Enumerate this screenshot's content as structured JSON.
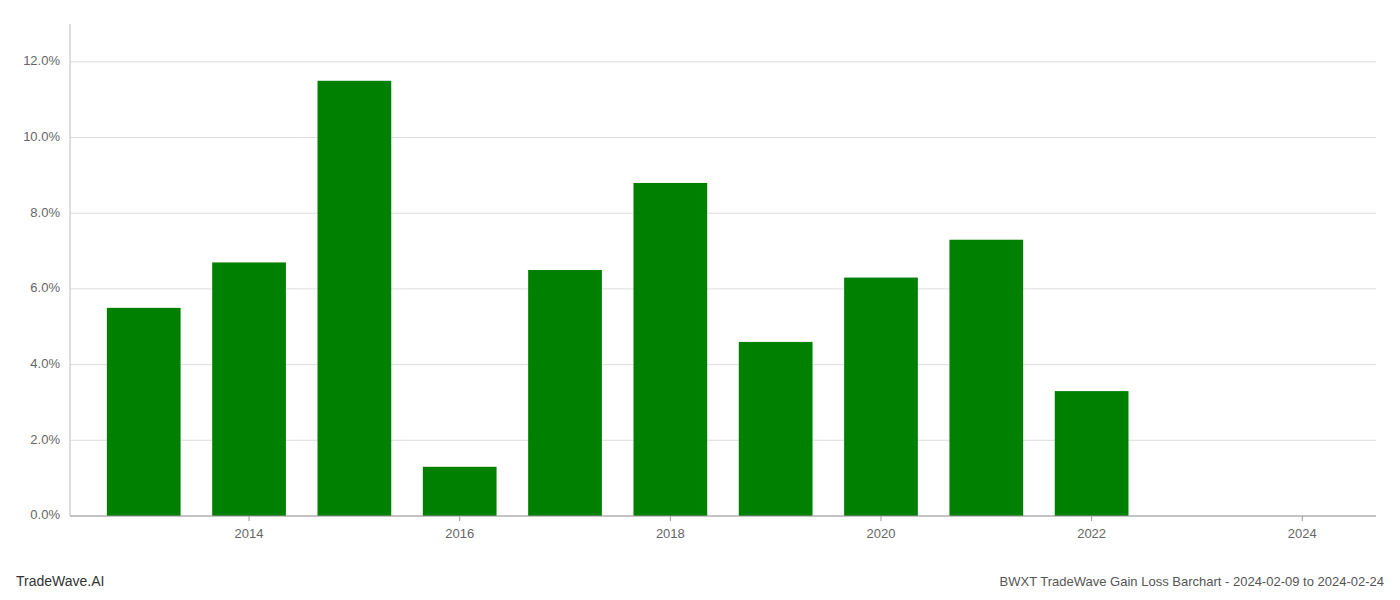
{
  "chart_data": {
    "type": "bar",
    "title": "BWXT TradeWave Gain Loss Barchart - 2024-02-09 to 2024-02-24",
    "annotations": [
      "TradeWave.AI"
    ],
    "x": [
      2013,
      2014,
      2015,
      2016,
      2017,
      2018,
      2019,
      2020,
      2021,
      2022
    ],
    "values": [
      0.055,
      0.067,
      0.115,
      0.013,
      0.065,
      0.088,
      0.046,
      0.063,
      0.073,
      0.033
    ],
    "color": "#008000",
    "xlim": [
      2012.3,
      2024.7
    ],
    "xticks": [
      2014,
      2016,
      2018,
      2020,
      2022,
      2024
    ],
    "ylim": [
      0,
      0.13
    ],
    "yticks": [
      {
        "value": 0.0,
        "label": "0.0%"
      },
      {
        "value": 0.02,
        "label": "2.0%"
      },
      {
        "value": 0.04,
        "label": "4.0%"
      },
      {
        "value": 0.06,
        "label": "6.0%"
      },
      {
        "value": 0.08,
        "label": "8.0%"
      },
      {
        "value": 0.1,
        "label": "10.0%"
      },
      {
        "value": 0.12,
        "label": "12.0%"
      }
    ],
    "grid": true
  }
}
